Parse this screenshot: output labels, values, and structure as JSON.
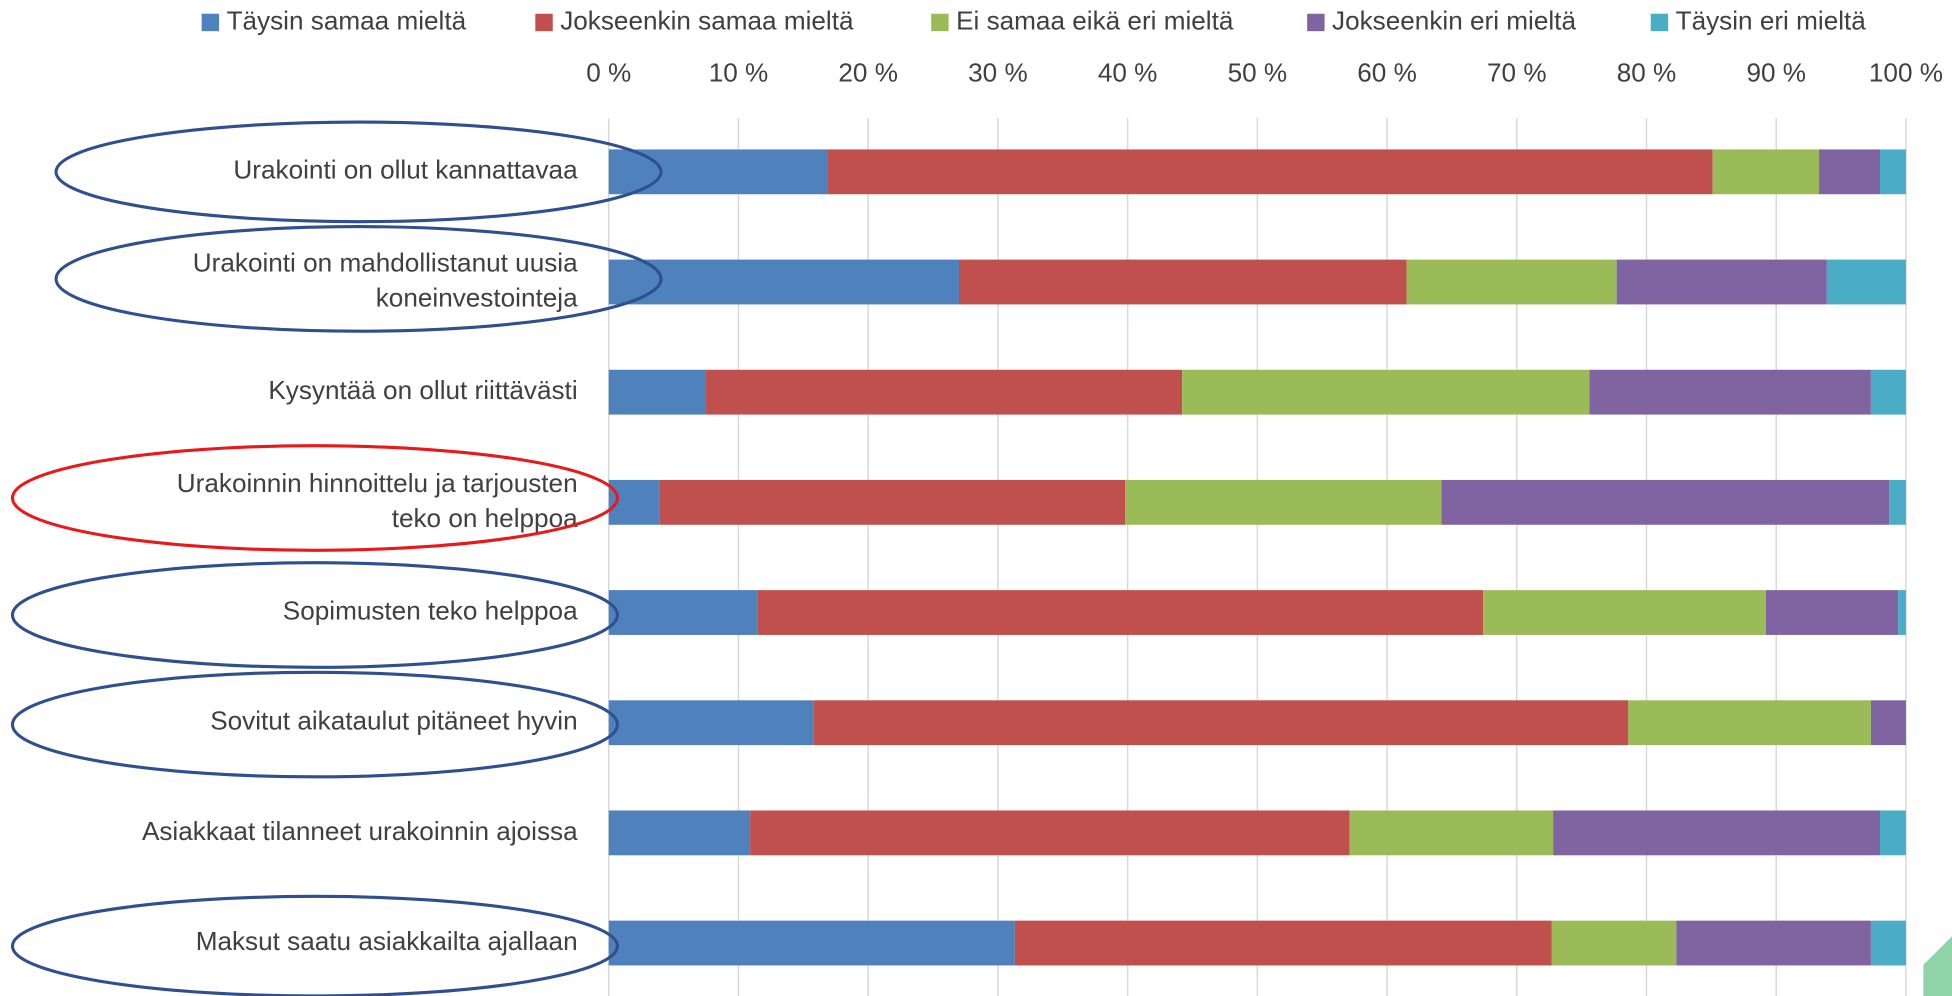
{
  "chart_data": {
    "type": "stacked-barh",
    "categories": [
      "Urakointi on ollut kannattavaa",
      "Urakointi on mahdollistanut uusia\nkoneinvestointeja",
      "Kysyntää on ollut riittävästi",
      "Urakoinnin hinnoittelu ja tarjousten\nteko on helppoa",
      "Sopimusten teko helppoa",
      "Sovitut aikataulut pitäneet hyvin",
      "Asiakkaat tilanneet urakoinnin ajoissa",
      "Maksut saatu asiakkailta ajallaan"
    ],
    "series": [
      {
        "name": "Täysin samaa mieltä",
        "color": "#4f81bd",
        "values": [
          16.9,
          27.0,
          7.5,
          3.9,
          11.5,
          15.8,
          10.9,
          31.3
        ]
      },
      {
        "name": "Jokseenkin samaa mieltä",
        "color": "#c0504d",
        "values": [
          68.2,
          34.5,
          36.7,
          35.9,
          55.9,
          62.8,
          46.2,
          41.4
        ]
      },
      {
        "name": "Ei samaa eikä eri mieltä",
        "color": "#9bbb59",
        "values": [
          8.2,
          16.2,
          31.4,
          24.4,
          21.8,
          18.7,
          15.7,
          9.6
        ]
      },
      {
        "name": "Jokseenkin eri mieltä",
        "color": "#8064a2",
        "values": [
          4.7,
          16.2,
          21.7,
          34.5,
          10.2,
          2.7,
          25.2,
          15.0
        ]
      },
      {
        "name": "Täysin eri mieltä",
        "color": "#4bacc6",
        "values": [
          2.0,
          6.1,
          2.7,
          1.3,
          0.6,
          0,
          2.0,
          2.7
        ]
      }
    ],
    "xlim": [
      0,
      100
    ],
    "xticks": [
      {
        "value": 0,
        "label": "0 %"
      },
      {
        "value": 10,
        "label": "10 %"
      },
      {
        "value": 20,
        "label": "20 %"
      },
      {
        "value": 30,
        "label": "30 %"
      },
      {
        "value": 40,
        "label": "40 %"
      },
      {
        "value": 50,
        "label": "50 %"
      },
      {
        "value": 60,
        "label": "60 %"
      },
      {
        "value": 70,
        "label": "70 %"
      },
      {
        "value": 80,
        "label": "80 %"
      },
      {
        "value": 90,
        "label": "90 %"
      },
      {
        "value": 100,
        "label": "100 %"
      }
    ],
    "grid": true,
    "legend": "top"
  }
}
